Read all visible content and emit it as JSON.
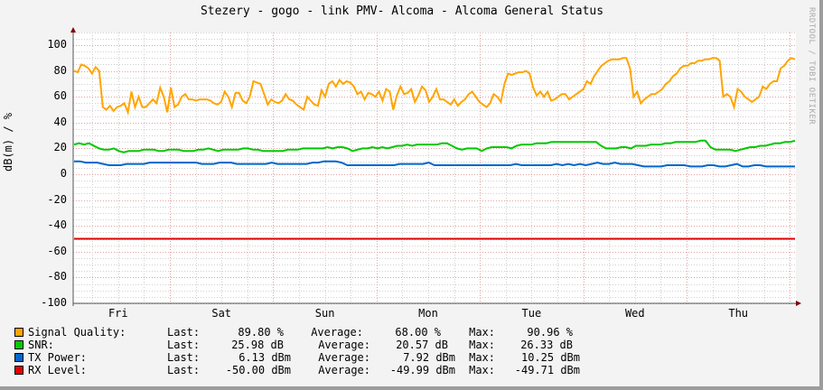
{
  "title": "Stezery - gogo - link PMV- Alcoma - Alcoma General Status",
  "watermark": "RRDTOOL / TOBI OETIKER",
  "chart_data": {
    "type": "line",
    "title": "Stezery - gogo - link PMV- Alcoma - Alcoma General Status",
    "xlabel": "",
    "ylabel": "dB(m) / %",
    "ylim": [
      -100,
      110
    ],
    "yticks": [
      "100",
      "80",
      "60",
      "40",
      "20",
      "0",
      "-20",
      "-40",
      "-60",
      "-80",
      "-100"
    ],
    "categories": [
      "Fri",
      "Sat",
      "Sun",
      "Mon",
      "Tue",
      "Wed",
      "Thu"
    ],
    "grid": true,
    "legend_position": "bottom",
    "series": [
      {
        "name": "Signal Quality",
        "color": "#ffa500",
        "unit": "%",
        "last": "89.80 %",
        "average": "68.00 %",
        "max": "90.96 %",
        "values": [
          80,
          79,
          85,
          84,
          82,
          78,
          83,
          80,
          52,
          50,
          53,
          49,
          52,
          53,
          55,
          48,
          64,
          52,
          60,
          52,
          52,
          55,
          58,
          55,
          67,
          60,
          48,
          67,
          52,
          54,
          60,
          62,
          58,
          58,
          57,
          58,
          58,
          58,
          57,
          55,
          54,
          56,
          64,
          60,
          52,
          63,
          63,
          57,
          55,
          60,
          72,
          71,
          70,
          62,
          54,
          58,
          56,
          55,
          57,
          62,
          58,
          57,
          54,
          52,
          50,
          60,
          57,
          54,
          53,
          65,
          60,
          70,
          72,
          68,
          73,
          70,
          72,
          71,
          68,
          62,
          64,
          58,
          63,
          62,
          60,
          64,
          57,
          66,
          64,
          50,
          61,
          68,
          62,
          63,
          66,
          56,
          61,
          68,
          65,
          56,
          60,
          66,
          58,
          58,
          56,
          54,
          58,
          53,
          56,
          58,
          62,
          64,
          60,
          56,
          54,
          52,
          55,
          62,
          60,
          56,
          70,
          78,
          77,
          78,
          79,
          79,
          80,
          78,
          67,
          61,
          64,
          60,
          64,
          57,
          58,
          60,
          62,
          62,
          58,
          60,
          62,
          64,
          66,
          72,
          70,
          76,
          80,
          84,
          86,
          88,
          89,
          89,
          89,
          90,
          90,
          82,
          60,
          64,
          55,
          58,
          60,
          62,
          62,
          64,
          66,
          70,
          72,
          76,
          78,
          82,
          84,
          84,
          86,
          86,
          88,
          88,
          89,
          89,
          90,
          90,
          88,
          60,
          62,
          60,
          52,
          66,
          64,
          60,
          58,
          56,
          58,
          60,
          68,
          66,
          70,
          72,
          72,
          82,
          84,
          88,
          90,
          89
        ]
      },
      {
        "name": "SNR",
        "color": "#00c800",
        "unit": "dB",
        "last": "25.98 dB",
        "average": "20.57 dB",
        "max": "26.33 dB",
        "values": [
          23,
          24,
          23,
          24,
          22,
          20,
          19,
          19,
          20,
          18,
          17,
          18,
          18,
          18,
          19,
          19,
          19,
          18,
          18,
          19,
          19,
          19,
          18,
          18,
          18,
          19,
          19,
          20,
          19,
          18,
          19,
          19,
          19,
          19,
          20,
          20,
          19,
          19,
          18,
          18,
          18,
          18,
          18,
          19,
          19,
          19,
          20,
          20,
          20,
          20,
          20,
          21,
          20,
          21,
          21,
          20,
          18,
          19,
          20,
          20,
          21,
          20,
          21,
          20,
          21,
          22,
          22,
          23,
          22,
          23,
          23,
          23,
          23,
          23,
          24,
          24,
          22,
          20,
          19,
          20,
          20,
          20,
          18,
          20,
          21,
          21,
          21,
          21,
          20,
          22,
          23,
          23,
          23,
          24,
          24,
          24,
          25,
          25,
          25,
          25,
          25,
          25,
          25,
          25,
          25,
          25,
          22,
          20,
          20,
          20,
          21,
          21,
          20,
          22,
          22,
          22,
          23,
          23,
          23,
          24,
          24,
          25,
          25,
          25,
          25,
          25,
          26,
          26,
          21,
          19,
          19,
          19,
          19,
          18,
          19,
          20,
          21,
          21,
          22,
          22,
          23,
          24,
          24,
          25,
          25,
          26
        ]
      },
      {
        "name": "TX Power",
        "color": "#0066cc",
        "unit": "dBm",
        "last": "6.13 dBm",
        "average": "7.92 dBm",
        "max": "10.25 dBm",
        "values": [
          10,
          10,
          9,
          9,
          9,
          8,
          7,
          7,
          7,
          8,
          8,
          8,
          8,
          9,
          9,
          9,
          9,
          9,
          9,
          9,
          9,
          9,
          8,
          8,
          8,
          9,
          9,
          9,
          8,
          8,
          8,
          8,
          8,
          8,
          9,
          8,
          8,
          8,
          8,
          8,
          8,
          9,
          9,
          10,
          10,
          10,
          9,
          7,
          7,
          7,
          7,
          7,
          7,
          7,
          7,
          7,
          8,
          8,
          8,
          8,
          8,
          9,
          7,
          7,
          7,
          7,
          7,
          7,
          7,
          7,
          7,
          7,
          7,
          7,
          7,
          7,
          8,
          7,
          7,
          7,
          7,
          7,
          7,
          8,
          7,
          8,
          7,
          8,
          7,
          8,
          9,
          8,
          8,
          9,
          8,
          8,
          8,
          7,
          6,
          6,
          6,
          6,
          7,
          7,
          7,
          7,
          6,
          6,
          6,
          7,
          7,
          6,
          6,
          7,
          8,
          6,
          6,
          7,
          7,
          6,
          6,
          6,
          6,
          6,
          6
        ]
      },
      {
        "name": "RX Level",
        "color": "#e00000",
        "unit": "dBm",
        "last": "-50.00 dBm",
        "average": "-49.99 dBm",
        "max": "-49.71 dBm",
        "values": [
          -50,
          -50
        ]
      }
    ]
  },
  "legend": [
    {
      "label": "Signal Quality:",
      "last_label": "Last:",
      "last": "89.80 %",
      "avg_label": "Average:",
      "avg": "68.00 %",
      "max_label": "Max:",
      "max": "90.96 %",
      "color": "#ffa500"
    },
    {
      "label": "SNR:",
      "last_label": "Last:",
      "last": "25.98 dB",
      "avg_label": "Average:",
      "avg": "20.57 dB",
      "max_label": "Max:",
      "max": "26.33 dB",
      "color": "#00c800"
    },
    {
      "label": "TX Power:",
      "last_label": "Last:",
      "last": "6.13 dBm",
      "avg_label": "Average:",
      "avg": "7.92 dBm",
      "max_label": "Max:",
      "max": "10.25 dBm",
      "color": "#0066cc"
    },
    {
      "label": "RX Level:",
      "last_label": "Last:",
      "last": "-50.00 dBm",
      "avg_label": "Average:",
      "avg": "-49.99 dBm",
      "max_label": "Max:",
      "max": "-49.71 dBm",
      "color": "#e00000"
    }
  ]
}
